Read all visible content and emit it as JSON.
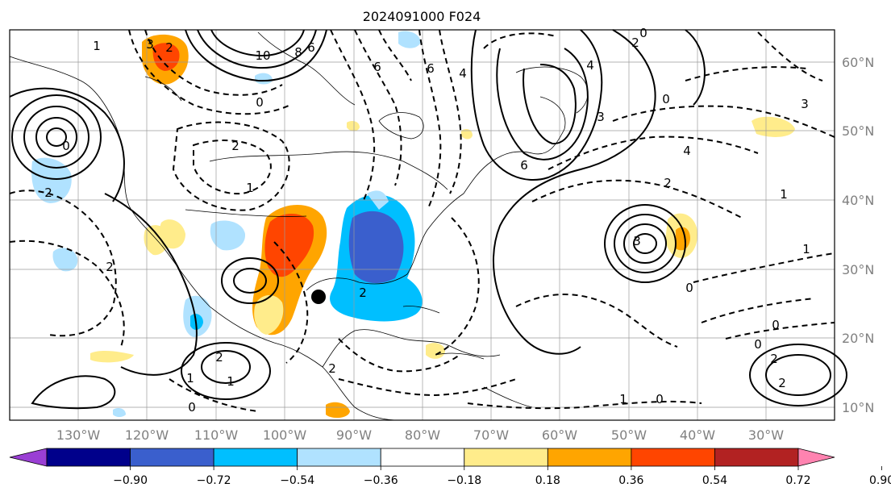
{
  "title": "2024091000 F024",
  "map": {
    "lon_labels": [
      "130°W",
      "120°W",
      "110°W",
      "100°W",
      "90°W",
      "80°W",
      "70°W",
      "60°W",
      "50°W",
      "40°W",
      "30°W"
    ],
    "lat_labels": [
      "60°N",
      "50°N",
      "40°N",
      "30°N",
      "20°N",
      "10°N"
    ],
    "contour_labels": [
      "3",
      "10",
      "8",
      "6",
      "2",
      "0",
      "6",
      "6",
      "4",
      "0",
      "2",
      "6",
      "3",
      "0",
      "1",
      "4",
      "2",
      "2",
      "2",
      "1",
      "3",
      "0",
      "1",
      "2",
      "1",
      "1",
      "2",
      "0",
      "1",
      "2",
      "0",
      "2",
      "0",
      "2",
      "2",
      "4",
      "0",
      "3",
      "1",
      "0"
    ],
    "storm_marker": "storm-center"
  },
  "colorbar": {
    "ticks": [
      "−0.90",
      "−0.72",
      "−0.54",
      "−0.36",
      "−0.18",
      "0.18",
      "0.36",
      "0.54",
      "0.72",
      "0.90"
    ],
    "colors": [
      "#9a3fd4",
      "#00008b",
      "#3a5fcd",
      "#00bfff",
      "#b0e2ff",
      "#ffffff",
      "#ffec8b",
      "#ffa500",
      "#ff4500",
      "#b22222",
      "#ff83b0"
    ]
  }
}
